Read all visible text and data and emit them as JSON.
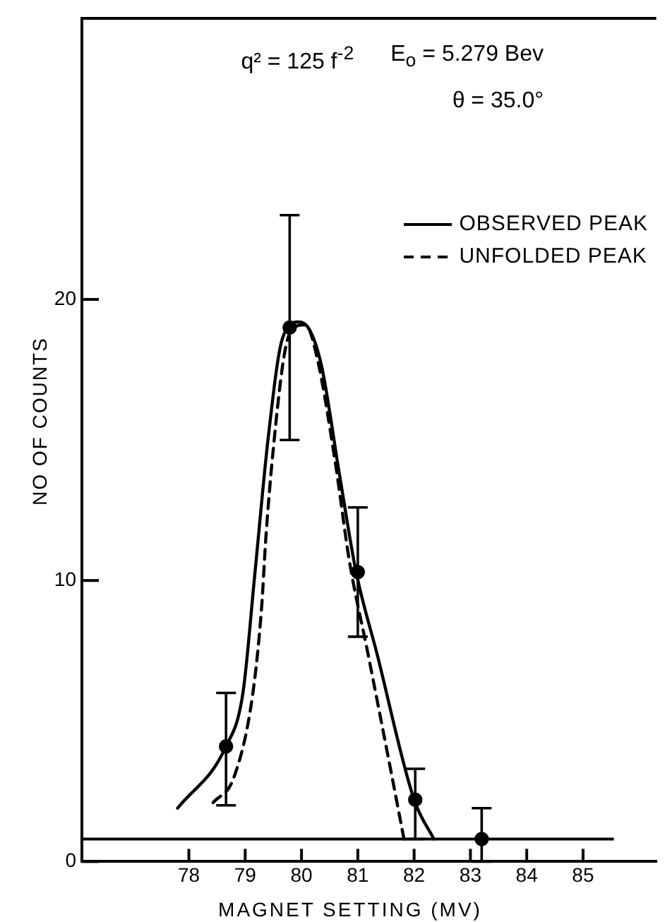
{
  "chart_data": {
    "type": "line",
    "xlabel": "MAGNET SETTING (MV)",
    "ylabel": "NO OF COUNTS",
    "annotations": [
      "q² = 125 f$^{-2}$",
      "E$_{o}$ = 5.279 Bev",
      "θ = 35.0°"
    ],
    "xlim": [
      76.1,
      86.3
    ],
    "xticks": [
      78,
      79,
      80,
      81,
      82,
      83,
      84,
      85
    ],
    "ylim": [
      0,
      30
    ],
    "yticks": [
      0,
      10,
      20
    ],
    "grid": false,
    "legend": "top right",
    "ref_lines": [
      {
        "axis": "y",
        "value": 0.8,
        "color": "#000000"
      }
    ],
    "series": [
      {
        "name": "OBSERVED PEAK",
        "type": "line",
        "color": "#000000",
        "line_style": "solid",
        "marker": "none",
        "x": [
          77.8,
          78.66,
          78.96,
          79.17,
          79.41,
          79.66,
          79.95,
          80.15,
          80.36,
          80.68,
          80.97,
          81.34,
          82.0,
          82.35
        ],
        "values": [
          1.9,
          4.1,
          6.0,
          10.2,
          15.1,
          18.6,
          19.2,
          18.9,
          17.6,
          13.7,
          10.3,
          7.4,
          2.2,
          0.8
        ]
      },
      {
        "name": "UNFOLDED PEAK",
        "type": "line",
        "color": "#000000",
        "line_style": "dashed",
        "marker": "none",
        "x": [
          78.43,
          78.8,
          79.13,
          79.29,
          79.37,
          79.5,
          79.7,
          79.86,
          80.07,
          80.28,
          80.6,
          80.85,
          81.18,
          81.59,
          81.82
        ],
        "values": [
          2.1,
          3.0,
          5.9,
          9.0,
          11.6,
          14.7,
          18.1,
          19.0,
          19.1,
          17.9,
          14.2,
          10.7,
          7.4,
          3.2,
          0.8
        ]
      },
      {
        "type": "scatter",
        "color": "#000000",
        "marker": "circle",
        "x": [
          78.66,
          79.79,
          81.0,
          82.02,
          83.2
        ],
        "values": [
          4.1,
          19.0,
          10.3,
          2.2,
          0.8
        ],
        "errors": [
          [
            2.0,
            6.0
          ],
          [
            15.0,
            23.0
          ],
          [
            8.0,
            12.6
          ],
          [
            0.8,
            3.3
          ],
          [
            0,
            1.9
          ]
        ]
      }
    ]
  }
}
